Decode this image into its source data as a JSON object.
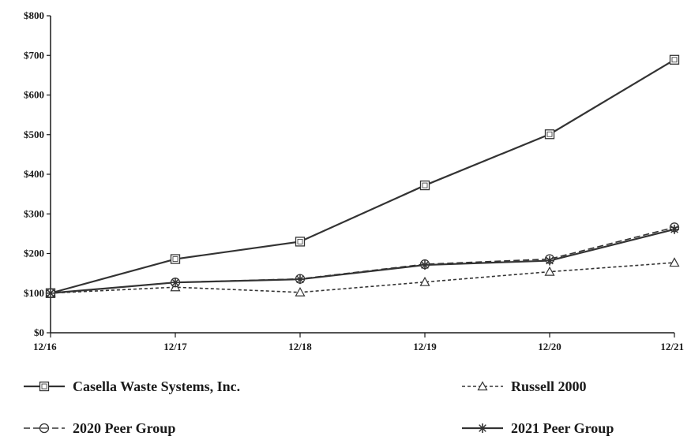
{
  "chart_data": {
    "type": "line",
    "title": "",
    "xlabel": "",
    "ylabel": "",
    "categories": [
      "12/16",
      "12/17",
      "12/18",
      "12/19",
      "12/20",
      "12/21"
    ],
    "ylim": [
      0,
      800
    ],
    "yticks": [
      0,
      100,
      200,
      300,
      400,
      500,
      600,
      700,
      800
    ],
    "ytick_labels": [
      "$0",
      "$100",
      "$200",
      "$300",
      "$400",
      "$500",
      "$600",
      "$700",
      "$800"
    ],
    "grid": false,
    "legend_position": "bottom",
    "series": [
      {
        "name": "Casella Waste Systems, Inc.",
        "values": [
          100,
          186,
          230,
          372,
          501,
          689
        ],
        "marker": "square",
        "dash": "solid",
        "color": "#333333"
      },
      {
        "name": "Russell 2000",
        "values": [
          100,
          115,
          102,
          128,
          154,
          177
        ],
        "marker": "triangle",
        "dash": "dotted",
        "color": "#333333"
      },
      {
        "name": "2020 Peer Group",
        "values": [
          100,
          127,
          136,
          173,
          186,
          266
        ],
        "marker": "circle-bar",
        "dash": "dashed",
        "color": "#333333"
      },
      {
        "name": "2021 Peer Group",
        "values": [
          100,
          127,
          135,
          171,
          182,
          261
        ],
        "marker": "asterisk",
        "dash": "solid",
        "color": "#333333"
      }
    ]
  }
}
